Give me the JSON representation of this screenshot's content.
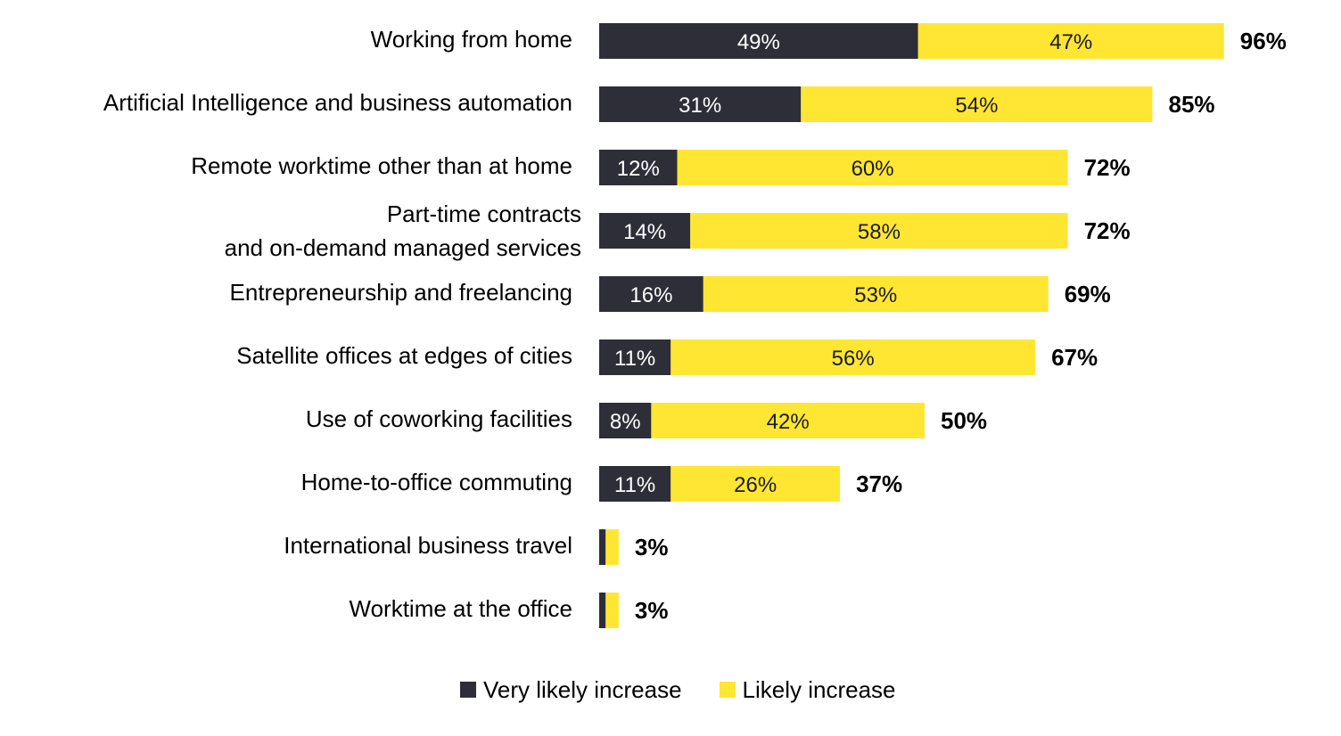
{
  "chart_data": {
    "type": "bar",
    "orientation": "horizontal",
    "stacked": true,
    "categories": [
      [
        "Working from home"
      ],
      [
        "Artificial Intelligence and business automation"
      ],
      [
        "Remote worktime other than at home"
      ],
      [
        "Part-time contracts",
        "and on-demand managed services"
      ],
      [
        "Entrepreneurship and freelancing"
      ],
      [
        "Satellite offices at edges of cities"
      ],
      [
        "Use of coworking facilities"
      ],
      [
        "Home-to-office commuting"
      ],
      [
        "International business travel"
      ],
      [
        "Worktime at the office"
      ]
    ],
    "series": [
      {
        "name": "Very likely increase",
        "color": "#2e2e38",
        "values": [
          49,
          31,
          12,
          14,
          16,
          11,
          8,
          11,
          1,
          1
        ],
        "labels": [
          "49%",
          "31%",
          "12%",
          "14%",
          "16%",
          "11%",
          "8%",
          "11%",
          "",
          ""
        ]
      },
      {
        "name": "Likely increase",
        "color": "#ffe633",
        "values": [
          47,
          54,
          60,
          58,
          53,
          56,
          42,
          26,
          2,
          2
        ],
        "labels": [
          "47%",
          "54%",
          "60%",
          "58%",
          "53%",
          "56%",
          "42%",
          "26%",
          "",
          ""
        ]
      }
    ],
    "totals": [
      "96%",
      "85%",
      "72%",
      "72%",
      "69%",
      "67%",
      "50%",
      "37%",
      "3%",
      "3%"
    ],
    "xlim": [
      0,
      100
    ],
    "grid": false,
    "legend_position": "bottom"
  }
}
